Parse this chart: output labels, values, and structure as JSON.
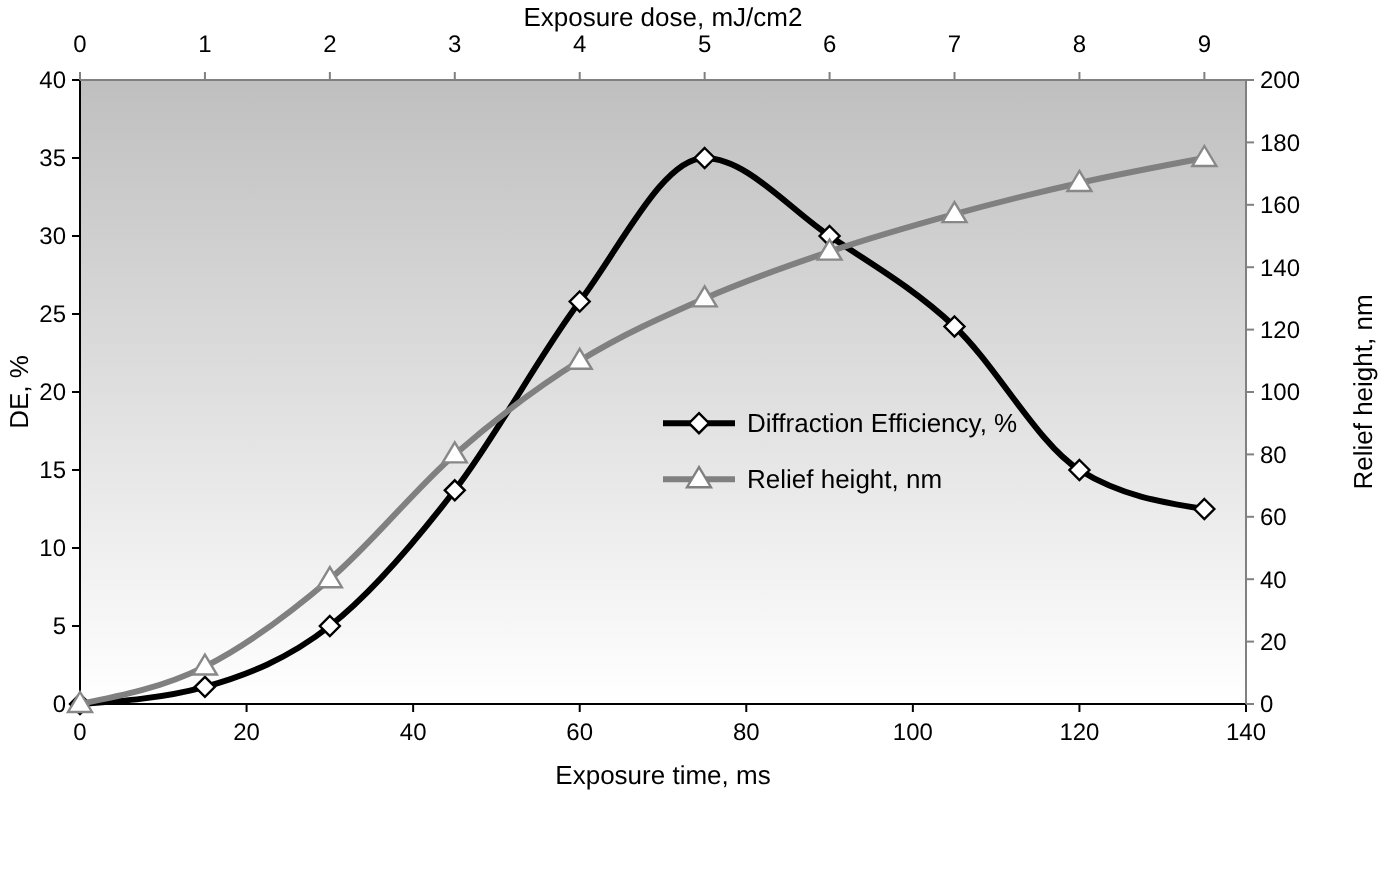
{
  "chart_data": {
    "type": "line",
    "xlabel": "Exposure time, ms",
    "ylabel": "DE, %",
    "y2label": "Relief height, nm",
    "x2label": "Exposure dose, mJ/cm2",
    "x": [
      0,
      15,
      30,
      45,
      60,
      75,
      90,
      105,
      120,
      135
    ],
    "series": [
      {
        "name": "Diffraction Efficiency, %",
        "color": "#000000",
        "marker": "diamond",
        "values": [
          0,
          1.1,
          5,
          13.7,
          25.8,
          35,
          30,
          24.2,
          15,
          12.5
        ]
      },
      {
        "name": "Relief height, nm",
        "color": "#808080",
        "marker": "triangle",
        "axis": "y2",
        "values": [
          0,
          12,
          40,
          80,
          110,
          130,
          145,
          157,
          167,
          175
        ]
      }
    ],
    "xlim": [
      0,
      140
    ],
    "xticks": [
      0,
      20,
      40,
      60,
      80,
      100,
      120,
      140
    ],
    "x2lim": [
      0,
      9.3333
    ],
    "x2ticks": [
      0,
      1,
      2,
      3,
      4,
      5,
      6,
      7,
      8,
      9
    ],
    "ylim": [
      0,
      40
    ],
    "yticks": [
      0,
      5,
      10,
      15,
      20,
      25,
      30,
      35,
      40
    ],
    "y2lim": [
      0,
      200
    ],
    "y2ticks": [
      0,
      20,
      40,
      60,
      80,
      100,
      120,
      140,
      160,
      180,
      200
    ],
    "legend": "right",
    "grid": false
  }
}
